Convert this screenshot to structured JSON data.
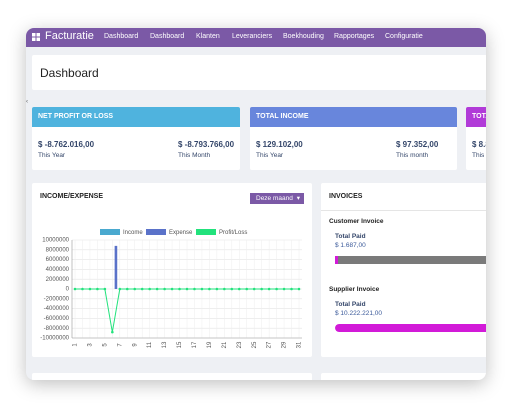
{
  "nav": {
    "brand": "Facturatie",
    "items": [
      "Dashboard",
      "Dashboard",
      "Klanten",
      "Leveranciers",
      "Boekhouding",
      "Rapportages",
      "Configuratie"
    ]
  },
  "header": {
    "title": "Dashboard"
  },
  "cards": [
    {
      "title": "NET PROFIT OR LOSS",
      "color": "#4fb3de",
      "stats": [
        {
          "value": "$ -8.762.016,00",
          "label": "This Year"
        },
        {
          "value": "$ -8.793.766,00",
          "label": "This Month"
        }
      ]
    },
    {
      "title": "TOTAL INCOME",
      "color": "#6886dc",
      "stats": [
        {
          "value": "$ 129.102,00",
          "label": "This Year"
        },
        {
          "value": "$ 97.352,00",
          "label": "This month"
        }
      ]
    },
    {
      "title": "TOTA",
      "color": "#b13bd8",
      "stats": [
        {
          "value": "$ 8.8",
          "label": "This"
        }
      ]
    }
  ],
  "income_panel": {
    "title": "INCOME/EXPENSE",
    "filter": "Deze maand"
  },
  "chart_data": {
    "type": "bar",
    "categories": [
      "1",
      null,
      "3",
      null,
      "5",
      null,
      "7",
      null,
      "9",
      null,
      "11",
      null,
      "13",
      null,
      "15",
      null,
      "17",
      null,
      "19",
      null,
      "21",
      null,
      "23",
      null,
      "25",
      null,
      "27",
      null,
      "29",
      null,
      "31"
    ],
    "series": [
      {
        "name": "Income",
        "type": "bar",
        "color": "#4aa9cf",
        "values": [
          0,
          0,
          0,
          0,
          0,
          0,
          0,
          0,
          0,
          0,
          0,
          0,
          0,
          0,
          0,
          0,
          0,
          0,
          0,
          0,
          0,
          0,
          0,
          0,
          0,
          0,
          0,
          0,
          0,
          0,
          0
        ]
      },
      {
        "name": "Expense",
        "type": "bar",
        "color": "#5a72c9",
        "values": [
          0,
          0,
          0,
          0,
          0,
          8800000,
          0,
          0,
          0,
          0,
          0,
          0,
          0,
          0,
          0,
          0,
          0,
          0,
          0,
          0,
          0,
          0,
          0,
          0,
          0,
          0,
          0,
          0,
          0,
          0,
          0
        ]
      },
      {
        "name": "Profit/Loss",
        "type": "line",
        "color": "#22e27c",
        "values": [
          0,
          0,
          0,
          0,
          0,
          -8800000,
          0,
          0,
          0,
          0,
          0,
          0,
          0,
          0,
          0,
          0,
          0,
          0,
          0,
          0,
          0,
          0,
          0,
          0,
          0,
          0,
          0,
          0,
          0,
          0,
          0
        ]
      }
    ],
    "ylim": [
      -10000000,
      10000000
    ],
    "yticks": [
      10000000,
      8000000,
      6000000,
      4000000,
      2000000,
      0,
      -2000000,
      -4000000,
      -6000000,
      -8000000,
      -10000000
    ],
    "grid": true
  },
  "invoices": {
    "title": "INVOICES",
    "groups": [
      {
        "title": "Customer Invoice",
        "label": "Total Paid",
        "amount": "$ 1.687,00",
        "progress": 2
      },
      {
        "title": "Supplier Invoice",
        "label": "Total Paid",
        "amount": "$ 10.222.221,00",
        "progress": 100
      }
    ]
  }
}
